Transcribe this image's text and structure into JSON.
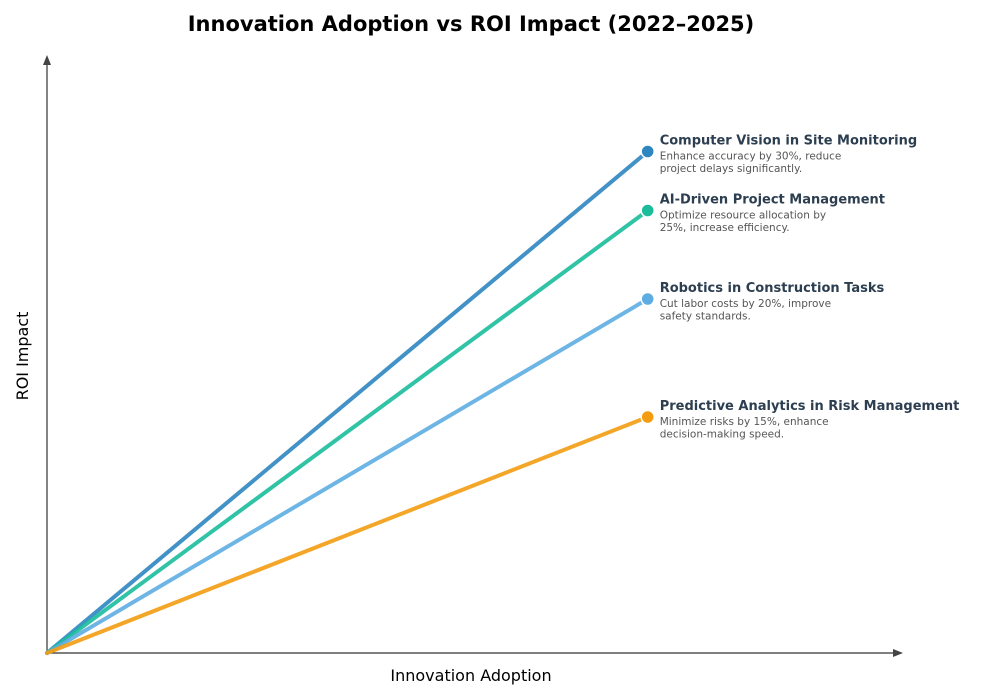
{
  "chart_data": {
    "type": "line",
    "title": "Innovation Adoption vs ROI Impact (2022–2025)",
    "xlabel": "Innovation Adoption",
    "ylabel": "ROI Impact",
    "xlim": [
      0,
      1.45
    ],
    "ylim": [
      0,
      1.0
    ],
    "grid": false,
    "series": [
      {
        "name": "Computer Vision in Site Monitoring",
        "description": [
          "Enhance accuracy by 30%, reduce",
          "project delays significantly."
        ],
        "color": "#2e86c1",
        "x": [
          0,
          1
        ],
        "y": [
          0,
          0.85
        ]
      },
      {
        "name": "AI-Driven Project Management",
        "description": [
          "Optimize resource allocation by",
          "25%, increase efficiency."
        ],
        "color": "#1abc9c",
        "x": [
          0,
          1
        ],
        "y": [
          0,
          0.75
        ]
      },
      {
        "name": "Robotics in Construction Tasks",
        "description": [
          "Cut labor costs by 20%, improve",
          "safety standards."
        ],
        "color": "#5dade2",
        "x": [
          0,
          1
        ],
        "y": [
          0,
          0.6
        ]
      },
      {
        "name": "Predictive Analytics in Risk Management",
        "description": [
          "Minimize risks by 15%, enhance",
          "decision-making speed."
        ],
        "color": "#f39c12",
        "x": [
          0,
          1
        ],
        "y": [
          0,
          0.4
        ]
      }
    ]
  }
}
